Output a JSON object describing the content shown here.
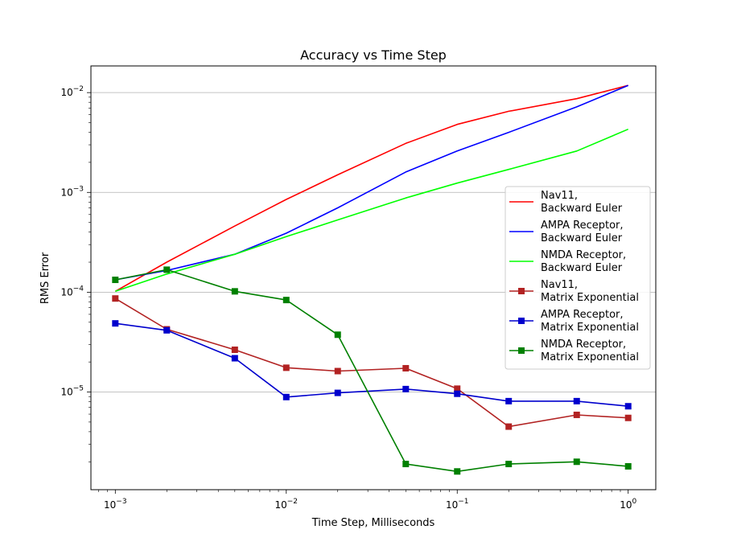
{
  "chart_data": {
    "type": "line",
    "title": "Accuracy vs Time Step",
    "xlabel": "Time Step, Milliseconds",
    "ylabel": "RMS Error",
    "xscale": "log",
    "yscale": "log",
    "xlim": [
      0.00072,
      1.45
    ],
    "ylim": [
      1.05e-06,
      0.0185
    ],
    "xticks": [
      {
        "value": 0.001,
        "base": "10",
        "exp": "−3"
      },
      {
        "value": 0.01,
        "base": "10",
        "exp": "−2"
      },
      {
        "value": 0.1,
        "base": "10",
        "exp": "−1"
      },
      {
        "value": 1,
        "base": "10",
        "exp": "0"
      }
    ],
    "yticks": [
      {
        "value": 1e-05,
        "base": "10",
        "exp": "−5"
      },
      {
        "value": 0.0001,
        "base": "10",
        "exp": "−4"
      },
      {
        "value": 0.001,
        "base": "10",
        "exp": "−3"
      },
      {
        "value": 0.01,
        "base": "10",
        "exp": "−2"
      }
    ],
    "grid": "y-major",
    "legend_position": "center-right",
    "x": [
      0.001,
      0.002,
      0.005,
      0.01,
      0.02,
      0.05,
      0.1,
      0.2,
      0.5,
      1
    ],
    "series": [
      {
        "name": [
          "Nav11,",
          "Backward Euler"
        ],
        "color": "#ff0000",
        "marker": "none",
        "values": [
          0.000102,
          0.0002,
          0.00046,
          0.00085,
          0.0015,
          0.0031,
          0.0048,
          0.0065,
          0.0087,
          0.0118
        ]
      },
      {
        "name": [
          "AMPA Receptor,",
          "Backward Euler"
        ],
        "color": "#0000ff",
        "marker": "none",
        "values": [
          0.000133,
          0.000165,
          0.00024,
          0.00039,
          0.0007,
          0.0016,
          0.0026,
          0.004,
          0.0072,
          0.0118
        ]
      },
      {
        "name": [
          "NMDA Receptor,",
          "Backward Euler"
        ],
        "color": "#00ff00",
        "marker": "none",
        "values": [
          0.000102,
          0.000152,
          0.00024,
          0.00036,
          0.00053,
          0.00088,
          0.00124,
          0.0017,
          0.0026,
          0.0043
        ]
      },
      {
        "name": [
          "Nav11,",
          "Matrix Exponential"
        ],
        "color": "#b22222",
        "marker": "square",
        "values": [
          8.65e-05,
          4.25e-05,
          2.65e-05,
          1.75e-05,
          1.62e-05,
          1.73e-05,
          1.08e-05,
          4.5e-06,
          5.9e-06,
          5.5e-06
        ]
      },
      {
        "name": [
          "AMPA Receptor,",
          "Matrix Exponential"
        ],
        "color": "#0000cd",
        "marker": "square",
        "values": [
          4.87e-05,
          4.15e-05,
          2.18e-05,
          8.9e-06,
          9.8e-06,
          1.07e-05,
          9.6e-06,
          8.1e-06,
          8.1e-06,
          7.2e-06
        ]
      },
      {
        "name": [
          "NMDA Receptor,",
          "Matrix Exponential"
        ],
        "color": "#008000",
        "marker": "square",
        "values": [
          0.000133,
          0.000168,
          0.000102,
          8.35e-05,
          3.75e-05,
          1.9e-06,
          1.6e-06,
          1.9e-06,
          2e-06,
          1.8e-06
        ]
      }
    ]
  }
}
